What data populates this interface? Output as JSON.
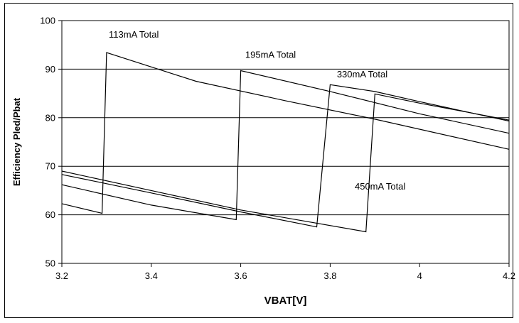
{
  "chart_data": {
    "type": "line",
    "xlabel": "VBAT[V]",
    "ylabel": "Efficiency Pled/Pbat",
    "xlim": [
      3.2,
      4.2
    ],
    "ylim": [
      50,
      100
    ],
    "x_ticks": [
      "3.2",
      "3.4",
      "3.6",
      "3.8",
      "4",
      "4.2"
    ],
    "y_ticks": [
      "50",
      "60",
      "70",
      "80",
      "90",
      "100"
    ],
    "grid": "horizontal",
    "legend": "none",
    "series": [
      {
        "points": [
          [
            3.2,
            62.3
          ],
          [
            3.29,
            60.3
          ],
          [
            3.3,
            93.4
          ],
          [
            3.5,
            87.5
          ],
          [
            3.7,
            83.5
          ],
          [
            3.9,
            79.7
          ],
          [
            4.2,
            73.5
          ]
        ]
      },
      {
        "points": [
          [
            3.2,
            66.2
          ],
          [
            3.4,
            62.0
          ],
          [
            3.59,
            59.0
          ],
          [
            3.6,
            89.7
          ],
          [
            3.8,
            85.4
          ],
          [
            4.0,
            80.8
          ],
          [
            4.2,
            76.8
          ]
        ]
      },
      {
        "points": [
          [
            3.2,
            68.3
          ],
          [
            3.4,
            64.5
          ],
          [
            3.6,
            60.6
          ],
          [
            3.77,
            57.5
          ],
          [
            3.8,
            86.8
          ],
          [
            3.9,
            85.4
          ],
          [
            4.0,
            83.3
          ],
          [
            4.2,
            79.3
          ]
        ]
      },
      {
        "points": [
          [
            3.2,
            69.0
          ],
          [
            3.4,
            65.0
          ],
          [
            3.6,
            61.0
          ],
          [
            3.88,
            56.5
          ],
          [
            3.9,
            84.9
          ],
          [
            4.0,
            83.0
          ],
          [
            4.2,
            79.5
          ]
        ]
      }
    ],
    "annotations": [
      {
        "text": "113mA Total",
        "x": 3.305,
        "y": 96.5
      },
      {
        "text": "195mA Total",
        "x": 3.61,
        "y": 92.3
      },
      {
        "text": "330mA Total",
        "x": 3.815,
        "y": 88.3
      },
      {
        "text": "450mA Total",
        "x": 3.855,
        "y": 65.2
      }
    ]
  }
}
